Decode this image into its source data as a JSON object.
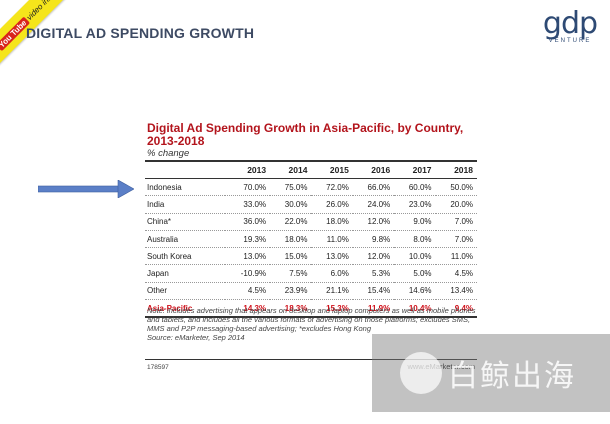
{
  "ribbon": {
    "brand": "You Tube",
    "text": "video inside"
  },
  "slide": {
    "title": "DIGITAL AD SPENDING GROWTH"
  },
  "logo": {
    "mark": "gdp",
    "sub": "VENTURE"
  },
  "chart_data": {
    "type": "table",
    "title": "Digital Ad Spending Growth in Asia-Pacific, by Country, 2013-2018",
    "subtitle": "% change",
    "columns": [
      "",
      "2013",
      "2014",
      "2015",
      "2016",
      "2017",
      "2018"
    ],
    "rows": [
      {
        "name": "Indonesia",
        "values": [
          "70.0%",
          "75.0%",
          "72.0%",
          "66.0%",
          "60.0%",
          "50.0%"
        ]
      },
      {
        "name": "India",
        "values": [
          "33.0%",
          "30.0%",
          "26.0%",
          "24.0%",
          "23.0%",
          "20.0%"
        ]
      },
      {
        "name": "China*",
        "values": [
          "36.0%",
          "22.0%",
          "18.0%",
          "12.0%",
          "9.0%",
          "7.0%"
        ]
      },
      {
        "name": "Australia",
        "values": [
          "19.3%",
          "18.0%",
          "11.0%",
          "9.8%",
          "8.0%",
          "7.0%"
        ]
      },
      {
        "name": "South Korea",
        "values": [
          "13.0%",
          "15.0%",
          "13.0%",
          "12.0%",
          "10.0%",
          "11.0%"
        ]
      },
      {
        "name": "Japan",
        "values": [
          "-10.9%",
          "7.5%",
          "6.0%",
          "5.3%",
          "5.0%",
          "4.5%"
        ]
      },
      {
        "name": "Other",
        "values": [
          "4.5%",
          "23.9%",
          "21.1%",
          "15.4%",
          "14.6%",
          "13.4%"
        ]
      }
    ],
    "total": {
      "name": "Asia-Pacific",
      "values": [
        "14.3%",
        "18.3%",
        "15.3%",
        "11.9%",
        "10.4%",
        "9.4%"
      ]
    },
    "note": "Note: includes advertising that appears on desktop and laptop computers as well as mobile phones and tablets, and includes all the various formats of advertising on those platforms; excludes SMS, MMS and P2P messaging-based advertising; *excludes Hong Kong",
    "source": "Source: eMarketer, Sep 2014",
    "id": "178597",
    "brand": "www.eMarketer.com"
  },
  "watermark": {
    "text": "白鲸出海"
  },
  "colors": {
    "title_red": "#b3141c",
    "total_red": "#d0101a",
    "arrow_blue": "#5b7fc7",
    "slide_title": "#3d4a63"
  }
}
